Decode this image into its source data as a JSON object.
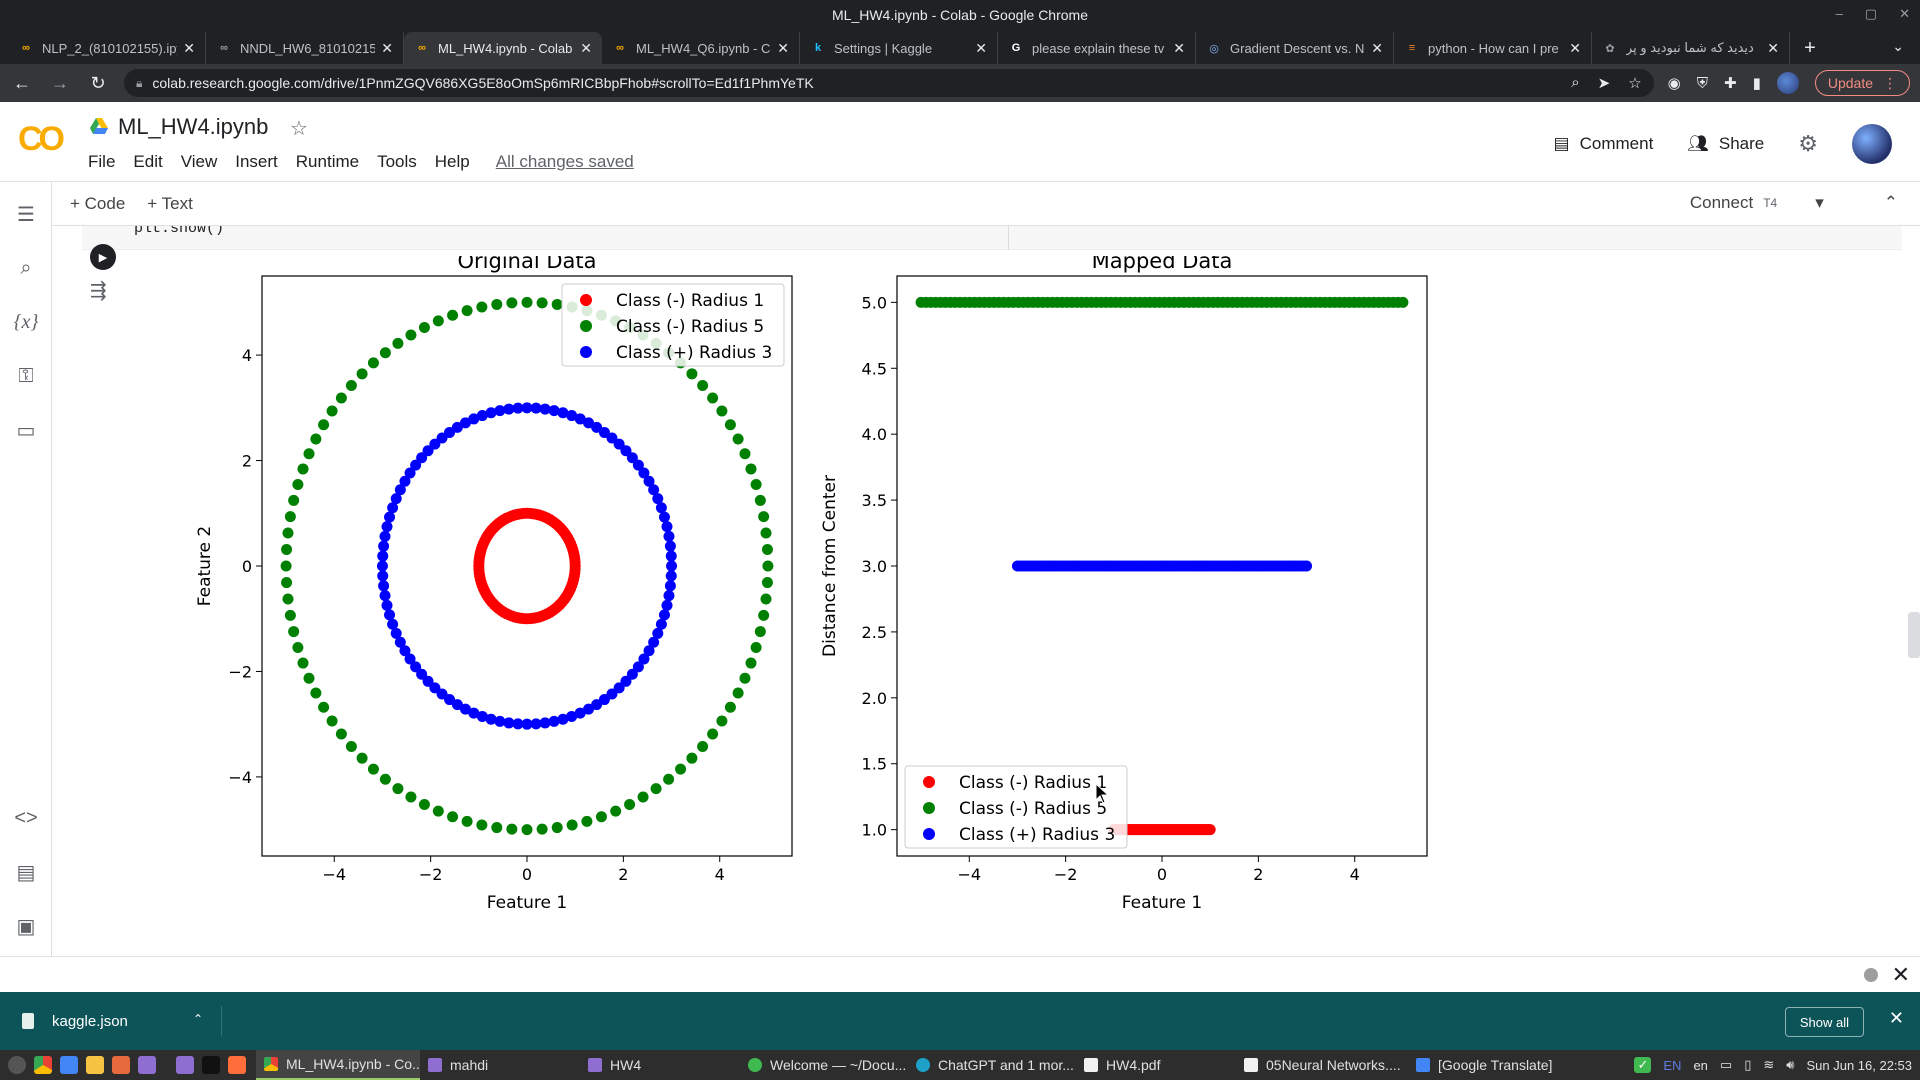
{
  "window": {
    "title": "ML_HW4.ipynb - Colab - Google Chrome"
  },
  "tabs": [
    {
      "label": "NLP_2_(810102155).ipy",
      "favicon": "colab-icon",
      "active": false
    },
    {
      "label": "NNDL_HW6_81010215",
      "favicon": "colab-icon",
      "active": false
    },
    {
      "label": "ML_HW4.ipynb - Colab",
      "favicon": "colab-icon",
      "active": true
    },
    {
      "label": "ML_HW4_Q6.ipynb - Co",
      "favicon": "colab-icon",
      "active": false
    },
    {
      "label": "Settings | Kaggle",
      "favicon": "kaggle-icon",
      "active": false
    },
    {
      "label": "please explain these tv",
      "favicon": "google-icon",
      "active": false
    },
    {
      "label": "Gradient Descent vs. N",
      "favicon": "chatgpt-icon",
      "active": false
    },
    {
      "label": "python - How can I pre",
      "favicon": "stackoverflow-icon",
      "active": false
    },
    {
      "label": "دیدید که شما نبودید و پر",
      "favicon": "site-icon",
      "active": false
    }
  ],
  "address": {
    "url": "colab.research.google.com/drive/1PnmZGQV686XG5E8oOmSp6mRICBbpFhob#scrollTo=Ed1f1PhmYeTK",
    "update_label": "Update"
  },
  "colab": {
    "notebook_title": "ML_HW4.ipynb",
    "menu": [
      "File",
      "Edit",
      "View",
      "Insert",
      "Runtime",
      "Tools",
      "Help"
    ],
    "saved_status": "All changes saved",
    "comment_label": "Comment",
    "share_label": "Share",
    "add_code_label": "+ Code",
    "add_text_label": "+ Text",
    "connect_label": "Connect",
    "runtime_badge": "T4",
    "code_fragment": "plt.show()"
  },
  "colors": {
    "red": "#ff0000",
    "green": "#008000",
    "blue": "#0000ff",
    "accent": "#f9ab00"
  },
  "chart_data": [
    {
      "type": "scatter",
      "title": "Original Data",
      "xlabel": "Feature 1",
      "ylabel": "Feature 2",
      "xlim": [
        -5.5,
        5.5
      ],
      "ylim": [
        -5.5,
        5.5
      ],
      "xticks": [
        -4,
        -2,
        0,
        2,
        4
      ],
      "yticks": [
        -4,
        -2,
        0,
        2,
        4
      ],
      "legend_position": "top-right",
      "series": [
        {
          "name": "Class (-) Radius 1",
          "color": "#ff0000",
          "shape": "circle",
          "radius": 1,
          "points": 100
        },
        {
          "name": "Class (-) Radius 5",
          "color": "#008000",
          "shape": "circle",
          "radius": 5,
          "points": 100
        },
        {
          "name": "Class (+) Radius 3",
          "color": "#0000ff",
          "shape": "circle",
          "radius": 3,
          "points": 100
        }
      ]
    },
    {
      "type": "scatter",
      "title": "Mapped Data",
      "xlabel": "Feature 1",
      "ylabel": "Distance from Center",
      "xlim": [
        -5.5,
        5.5
      ],
      "ylim": [
        0.8,
        5.2
      ],
      "xticks": [
        -4,
        -2,
        0,
        2,
        4
      ],
      "yticks": [
        1.0,
        1.5,
        2.0,
        2.5,
        3.0,
        3.5,
        4.0,
        4.5,
        5.0
      ],
      "legend_position": "lower-left",
      "series": [
        {
          "name": "Class (-) Radius 1",
          "color": "#ff0000",
          "shape": "line",
          "y": 1.0,
          "x_range": [
            -1,
            1
          ],
          "points": 100
        },
        {
          "name": "Class (-) Radius 5",
          "color": "#008000",
          "shape": "line",
          "y": 5.0,
          "x_range": [
            -5,
            5
          ],
          "points": 100
        },
        {
          "name": "Class (+) Radius 3",
          "color": "#0000ff",
          "shape": "line",
          "y": 3.0,
          "x_range": [
            -3,
            3
          ],
          "points": 100
        }
      ]
    }
  ],
  "downloads": {
    "file": "kaggle.json",
    "show_all": "Show all"
  },
  "taskbar": {
    "tasks": [
      "ML_HW4.ipynb - Co...",
      "mahdi",
      "HW4",
      "Welcome — ~/Docu...",
      "ChatGPT and 1 mor...",
      "HW4.pdf",
      "05Neural Networks....",
      "[Google Translate]"
    ],
    "lang": "EN",
    "lang2": "en",
    "clock": "Sun Jun 16, 22:53"
  }
}
